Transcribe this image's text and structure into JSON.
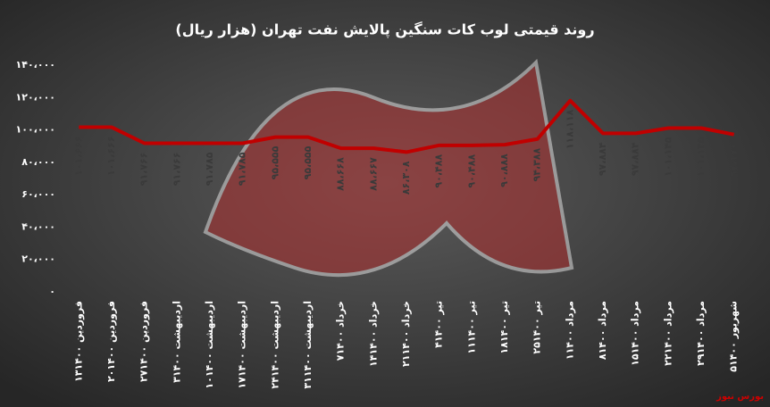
{
  "chart_data": {
    "type": "line",
    "title": "روند قیمتی لوب کات سنگین پالایش نفت تهران (هزار ریال)",
    "source": "بورس نیوز",
    "categories": [
      "۱۳فروردین ۱۴۰۰",
      "۲۰فروردین ۱۴۰۰",
      "۲۷فروردین ۱۴۰۰",
      "۳اردیبهشت ۱۴۰۰",
      "۱۰اردیبهشت ۱۴۰۰",
      "۱۷اردیبهشت ۱۴۰۰",
      "۲۴اردیبهشت ۱۴۰۰",
      "۳۱اردیبهشت ۱۴۰۰",
      "۷خرداد ۱۴۰۰",
      "۱۴خرداد ۱۴۰۰",
      "۲۱خرداد ۱۴۰۰",
      "۴تیر ۱۴۰۰",
      "۱۱تیر ۱۴۰۰",
      "۱۸تیر ۱۴۰۰",
      "۲۵تیر ۱۴۰۰",
      "۱مرداد ۱۴۰۰",
      "۸مرداد ۱۴۰۰",
      "۱۵مرداد ۱۴۰۰",
      "۲۲مرداد ۱۴۰۰",
      "۲۹مرداد ۱۴۰۰",
      "۵شهریور ۱۴۰۰"
    ],
    "values": [
      101666,
      101666,
      91766,
      91766,
      91785,
      91785,
      95555,
      95555,
      88668,
      88667,
      86308,
      90488,
      90488,
      90888,
      94388,
      118118,
      97884,
      97884,
      101145,
      101145,
      97170
    ],
    "value_labels": [
      "۱۰۱،۶۶۶",
      "۱۰۱،۶۶۶",
      "۹۱،۷۶۶",
      "۹۱،۷۶۶",
      "۹۱،۷۸۵",
      "۹۱،۷۸۵",
      "۹۵،۵۵۵",
      "۹۵،۵۵۵",
      "۸۸،۶۶۸",
      "۸۸،۶۶۷",
      "۸۶،۳۰۸",
      "۹۰،۴۸۸",
      "۹۰،۴۸۸",
      "۹۰،۸۸۸",
      "۹۴،۳۸۸",
      "۱۱۸،۱۱۸",
      "۹۷،۸۸۴",
      "۹۷،۸۸۴",
      "۱۰۱،۱۴۵",
      "۱۰۱،۱۴۵",
      "۹۷،۱۷۰"
    ],
    "color": "#c00000",
    "ylim": [
      0,
      140000
    ],
    "yticks": [
      {
        "value": 0,
        "label": "۰"
      },
      {
        "value": 20000,
        "label": "۲۰،۰۰۰"
      },
      {
        "value": 40000,
        "label": "۴۰،۰۰۰"
      },
      {
        "value": 60000,
        "label": "۶۰،۰۰۰"
      },
      {
        "value": 80000,
        "label": "۸۰،۰۰۰"
      },
      {
        "value": 100000,
        "label": "۱۰۰،۰۰۰"
      },
      {
        "value": 120000,
        "label": "۱۲۰،۰۰۰"
      },
      {
        "value": 140000,
        "label": "۱۴۰،۰۰۰"
      }
    ],
    "grid": false
  }
}
